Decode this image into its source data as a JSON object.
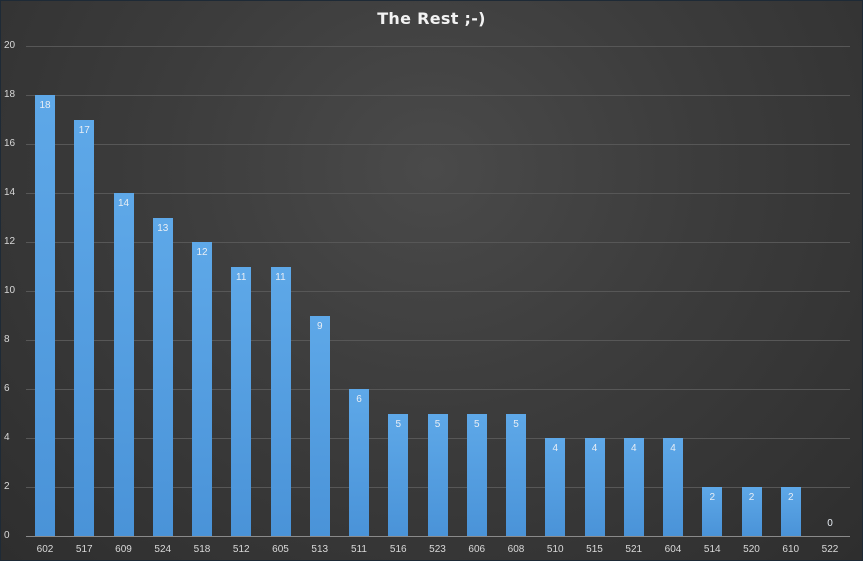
{
  "chart_data": {
    "type": "bar",
    "title": "The Rest ;-)",
    "xlabel": "",
    "ylabel": "",
    "ylim": [
      0,
      20
    ],
    "yticks": [
      0,
      2,
      4,
      6,
      8,
      10,
      12,
      14,
      16,
      18,
      20
    ],
    "grid": true,
    "legend": null,
    "data_labels": true,
    "categories": [
      "602",
      "517",
      "609",
      "524",
      "518",
      "512",
      "605",
      "513",
      "511",
      "516",
      "523",
      "606",
      "608",
      "510",
      "515",
      "521",
      "604",
      "514",
      "520",
      "610",
      "522"
    ],
    "values": [
      18,
      17,
      14,
      13,
      12,
      11,
      11,
      9,
      6,
      5,
      5,
      5,
      5,
      4,
      4,
      4,
      4,
      2,
      2,
      2,
      0
    ],
    "bar_color": "#5ba3e6",
    "background_color": "#3c3c3c"
  }
}
